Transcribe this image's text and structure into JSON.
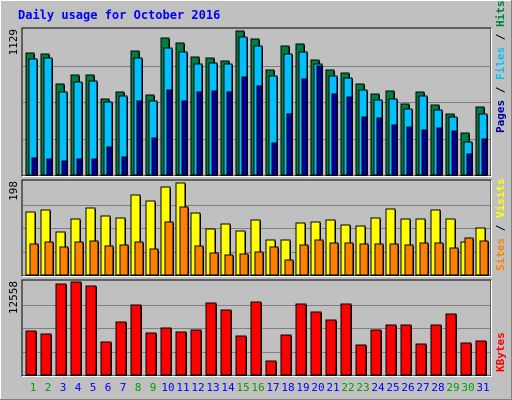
{
  "chart_data": [
    {
      "type": "bar",
      "title": "Daily usage for October 2016",
      "y_label_max": "1129",
      "ylim": [
        0,
        1129
      ],
      "categories": [
        "1",
        "2",
        "3",
        "4",
        "5",
        "6",
        "7",
        "8",
        "9",
        "10",
        "11",
        "12",
        "13",
        "14",
        "15",
        "16",
        "17",
        "18",
        "19",
        "20",
        "21",
        "22",
        "23",
        "24",
        "25",
        "26",
        "27",
        "28",
        "29",
        "30",
        "31"
      ],
      "weekend_days": [
        "1",
        "2",
        "8",
        "9",
        "15",
        "16",
        "22",
        "23",
        "29",
        "30"
      ],
      "grid": true,
      "legend_placement": "right",
      "legend": [
        "Pages",
        "Files",
        "Hits"
      ],
      "series": [
        {
          "name": "Hits",
          "values": [
            940,
            935,
            705,
            775,
            775,
            590,
            640,
            960,
            620,
            1058,
            1020,
            910,
            905,
            885,
            1115,
            1050,
            810,
            995,
            1015,
            890,
            815,
            790,
            700,
            627,
            650,
            550,
            645,
            538,
            472,
            328,
            525
          ]
        },
        {
          "name": "Files",
          "values": [
            895,
            905,
            645,
            718,
            730,
            565,
            610,
            906,
            575,
            980,
            950,
            855,
            865,
            855,
            1064,
            1000,
            765,
            938,
            950,
            857,
            765,
            747,
            660,
            580,
            588,
            512,
            610,
            500,
            450,
            252,
            475
          ]
        },
        {
          "name": "Pages",
          "values": [
            135,
            120,
            110,
            125,
            120,
            215,
            140,
            570,
            285,
            660,
            570,
            640,
            650,
            640,
            755,
            690,
            245,
            470,
            740,
            840,
            630,
            600,
            450,
            440,
            390,
            370,
            350,
            360,
            340,
            165,
            280
          ]
        }
      ]
    },
    {
      "type": "bar",
      "y_label_max": "198",
      "ylim": [
        0,
        198
      ],
      "categories": [
        "1",
        "2",
        "3",
        "4",
        "5",
        "6",
        "7",
        "8",
        "9",
        "10",
        "11",
        "12",
        "13",
        "14",
        "15",
        "16",
        "17",
        "18",
        "19",
        "20",
        "21",
        "22",
        "23",
        "24",
        "25",
        "26",
        "27",
        "28",
        "29",
        "30",
        "31"
      ],
      "grid": true,
      "legend": [
        "Sites",
        "Visits"
      ],
      "series": [
        {
          "name": "Visits",
          "values": [
            133,
            136,
            90,
            117,
            142,
            125,
            120,
            168,
            155,
            186,
            193,
            131,
            97,
            108,
            92,
            115,
            74,
            73,
            109,
            111,
            115,
            106,
            104,
            120,
            138,
            118,
            118,
            137,
            118,
            69,
            98
          ]
        },
        {
          "name": "Sites",
          "values": [
            65,
            70,
            58,
            70,
            72,
            61,
            64,
            70,
            54,
            112,
            144,
            62,
            46,
            42,
            45,
            48,
            60,
            32,
            64,
            73,
            67,
            67,
            65,
            66,
            65,
            64,
            67,
            68,
            56,
            77,
            72
          ]
        }
      ]
    },
    {
      "type": "bar",
      "y_label_max": "12558",
      "ylim": [
        0,
        12558
      ],
      "categories": [
        "1",
        "2",
        "3",
        "4",
        "5",
        "6",
        "7",
        "8",
        "9",
        "10",
        "11",
        "12",
        "13",
        "14",
        "15",
        "16",
        "17",
        "18",
        "19",
        "20",
        "21",
        "22",
        "23",
        "24",
        "25",
        "26",
        "27",
        "28",
        "29",
        "30",
        "31"
      ],
      "grid": true,
      "legend": [
        "KBytes"
      ],
      "series": [
        {
          "name": "KBytes",
          "values": [
            5840,
            5510,
            12100,
            12430,
            11870,
            4450,
            7100,
            9340,
            5550,
            6280,
            5730,
            6000,
            9600,
            8750,
            5230,
            9740,
            1860,
            5360,
            9480,
            8430,
            7400,
            9480,
            4000,
            6000,
            6700,
            6730,
            4200,
            6700,
            8210,
            4230,
            4590
          ]
        }
      ]
    }
  ],
  "colors": {
    "background": "#c0c0c0",
    "title": "#0000ff",
    "hits": "#008040",
    "files": "#00c0ff",
    "pages": "#0000a0",
    "visits": "#ffff00",
    "sites": "#ff8000",
    "kbytes": "#ff0000",
    "weekday_label": "#0000ff",
    "weekend_label": "#00a000"
  }
}
